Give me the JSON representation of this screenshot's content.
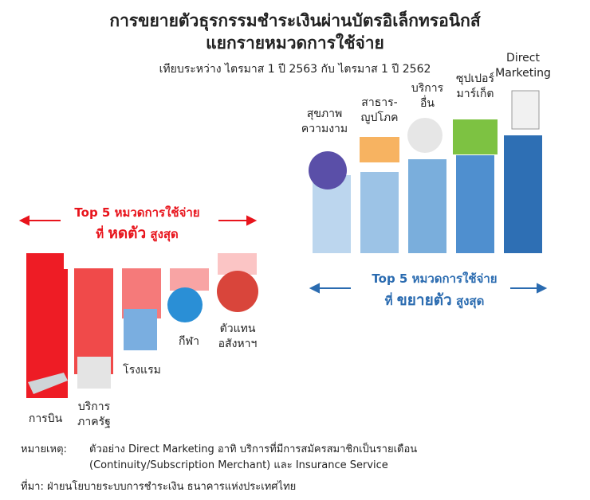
{
  "header": {
    "title_lines": [
      "การขยายตัวธุรกรรมชำระเงินผ่านบัตรอิเล็กทรอนิกส์",
      "แยกรายหมวดการใช้จ่าย"
    ],
    "subtitle": "เทียบระหว่าง ไตรมาส 1 ปี 2563 กับ ไตรมาส 1 ปี 2562"
  },
  "growth": {
    "heading": "Top 5 หมวดการใช้จ่าย",
    "emphasis": [
      "ที่",
      "ขยายตัว",
      "สูงสุด"
    ],
    "categories": [
      [
        "สุขภาพ",
        "ความงาม"
      ],
      [
        "สาธาร-",
        "ญูปโภค"
      ],
      [
        "บริการ",
        "อื่น"
      ],
      [
        "ซุปเปอร์",
        "มาร์เก็ต"
      ],
      [
        "Direct",
        "Marketing"
      ]
    ]
  },
  "decline": {
    "heading": "Top 5 หมวดการใช้จ่าย",
    "emphasis": [
      "ที่",
      "หดตัว",
      "สูงสุด"
    ],
    "categories": [
      [
        "การบิน"
      ],
      [
        "บริการ",
        "ภาครัฐ"
      ],
      [
        "โรงแรม"
      ],
      [
        "กีฬา"
      ],
      [
        "ตัวแทน",
        "อสังหาฯ"
      ]
    ]
  },
  "note": {
    "label": "หมายเหตุ:",
    "lines": [
      "ตัวอย่าง Direct Marketing อาทิ บริการที่มีการสมัครสมาชิกเป็นรายเดือน",
      "(Continuity/Subscription Merchant) และ Insurance Service"
    ]
  },
  "source": "ที่มา: ฝ่ายนโยบายระบบการชำระเงิน ธนาคารแห่งประเทศไทย"
}
